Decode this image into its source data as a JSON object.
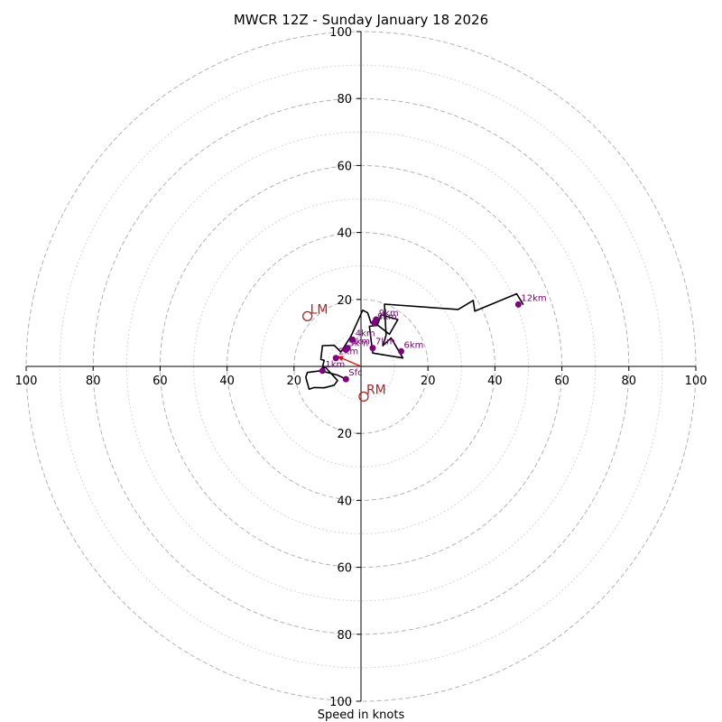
{
  "chart_data": {
    "type": "hodograph",
    "title": "MWCR 12Z - Sunday January 18 2026",
    "xlabel": "Speed in knots",
    "max_speed": 100,
    "rings_major": [
      20,
      40,
      60,
      80,
      100
    ],
    "rings_minor": [
      10,
      30,
      50,
      70,
      90
    ],
    "tick_labels": {
      "x": [
        "100",
        "80",
        "60",
        "40",
        "20",
        "20",
        "40",
        "60",
        "80",
        "100"
      ],
      "x_values": [
        -100,
        -80,
        -60,
        -40,
        -20,
        20,
        40,
        60,
        80,
        100
      ],
      "y": [
        "100",
        "80",
        "60",
        "40",
        "20",
        "20",
        "40",
        "60",
        "80",
        "100"
      ],
      "y_values": [
        100,
        80,
        60,
        40,
        20,
        -20,
        -40,
        -60,
        -80,
        -100
      ]
    },
    "trace": [
      [
        -4.5,
        -3.8
      ],
      [
        -7,
        -2.6
      ],
      [
        -12,
        -1.3
      ],
      [
        -16,
        -1.8
      ],
      [
        -16.5,
        -3.2
      ],
      [
        -15.5,
        -6.8
      ],
      [
        -14,
        -6.3
      ],
      [
        -11,
        -6.4
      ],
      [
        -8,
        -5.6
      ],
      [
        -7,
        -4.2
      ],
      [
        -10.5,
        -0.4
      ],
      [
        -11.5,
        -0.3
      ],
      [
        -11,
        1.8
      ],
      [
        -12,
        2.1
      ],
      [
        -11.5,
        6.2
      ],
      [
        -8,
        6.3
      ],
      [
        -6,
        4.3
      ],
      [
        -3,
        9.0
      ],
      [
        0.5,
        16.8
      ],
      [
        2,
        16.0
      ],
      [
        3,
        13.0
      ],
      [
        4,
        12.5
      ],
      [
        5,
        12.7
      ],
      [
        6,
        15.4
      ],
      [
        11,
        14.0
      ],
      [
        8.5,
        9.6
      ],
      [
        5,
        12.3
      ],
      [
        2.5,
        12.0
      ],
      [
        3.5,
        4.0
      ],
      [
        12.5,
        2.5
      ],
      [
        9,
        8.5
      ],
      [
        6.5,
        6.2
      ],
      [
        7.5,
        9.3
      ],
      [
        7,
        18.6
      ],
      [
        29,
        17.0
      ],
      [
        33.5,
        19.7
      ],
      [
        34,
        16.5
      ],
      [
        46.5,
        21.7
      ],
      [
        48.5,
        18.4
      ]
    ],
    "points": [
      {
        "label": "Sfc",
        "u": -4.5,
        "v": -3.8
      },
      {
        "label": "1km",
        "u": -11.5,
        "v": -1.3
      },
      {
        "label": "2km",
        "u": -7.5,
        "v": 2.5
      },
      {
        "label": "3km",
        "u": -4,
        "v": 5.5
      },
      {
        "label": "4km",
        "u": -2.5,
        "v": 8.0
      },
      {
        "label": "5km",
        "u": -4.5,
        "v": 5.0
      },
      {
        "label": "6km",
        "u": 12,
        "v": 4.5
      },
      {
        "label": "7km",
        "u": 3.5,
        "v": 5.5
      },
      {
        "label": "8km",
        "u": 4,
        "v": 13.0
      },
      {
        "label": "9km",
        "u": 4.5,
        "v": 14.0
      },
      {
        "label": "12km",
        "u": 47,
        "v": 18.5
      }
    ],
    "bunkers_vector": {
      "u": -7.2,
      "v": 3.1
    },
    "storm_motions": [
      {
        "label": "LM",
        "u": -16,
        "v": 15
      },
      {
        "label": "RM",
        "u": 0.8,
        "v": -9
      }
    ],
    "colors": {
      "trace": "#000000",
      "points": "#800080",
      "storm": "#b22222",
      "vector": "#ff0000",
      "rings": "#b3b3b3",
      "minor_rings": "#cccccc"
    }
  }
}
